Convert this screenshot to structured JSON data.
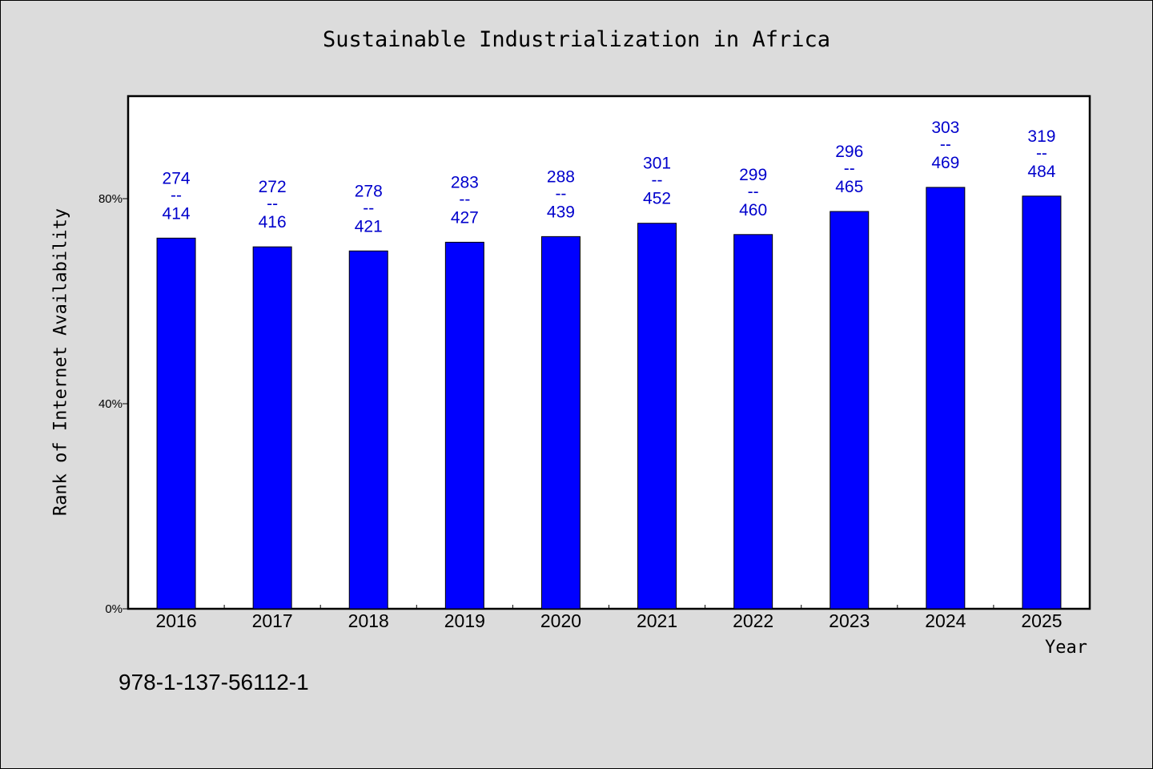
{
  "chart_data": {
    "type": "bar",
    "title": "Sustainable Industrialization in Africa",
    "xlabel": "Year",
    "ylabel": "Rank of Internet Availability",
    "categories": [
      "2016",
      "2017",
      "2018",
      "2019",
      "2020",
      "2021",
      "2022",
      "2023",
      "2024",
      "2025"
    ],
    "series": [
      {
        "values": [
          72.3,
          70.6,
          69.8,
          71.5,
          72.6,
          75.2,
          73.0,
          77.5,
          82.2,
          80.5
        ]
      }
    ],
    "data_labels": [
      {
        "top": "274",
        "sep": "--",
        "bottom": "414"
      },
      {
        "top": "272",
        "sep": "--",
        "bottom": "416"
      },
      {
        "top": "278",
        "sep": "--",
        "bottom": "421"
      },
      {
        "top": "283",
        "sep": "--",
        "bottom": "427"
      },
      {
        "top": "288",
        "sep": "--",
        "bottom": "439"
      },
      {
        "top": "301",
        "sep": "--",
        "bottom": "452"
      },
      {
        "top": "299",
        "sep": "--",
        "bottom": "460"
      },
      {
        "top": "296",
        "sep": "--",
        "bottom": "465"
      },
      {
        "top": "303",
        "sep": "--",
        "bottom": "469"
      },
      {
        "top": "319",
        "sep": "--",
        "bottom": "484"
      }
    ],
    "ylim": [
      0,
      100
    ],
    "yticks": [
      0,
      40,
      80
    ],
    "ytick_labels": [
      "0%",
      "40%",
      "80%"
    ],
    "grid": false,
    "bar_color": "#0000ff",
    "label_color": "#0000cc",
    "plot_background": "#ffffff",
    "page_background": "#dcdcdc"
  },
  "footer": {
    "isbn": "978-1-137-56112-1"
  }
}
